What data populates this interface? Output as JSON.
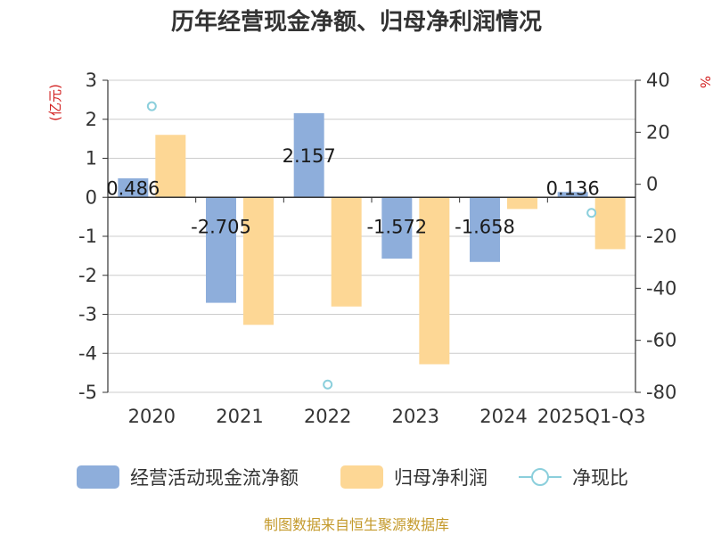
{
  "chart_data": {
    "type": "bar",
    "title": "历年经营现金净额、归母净利润情况",
    "categories": [
      "2020",
      "2021",
      "2022",
      "2023",
      "2024",
      "2025Q1-Q3"
    ],
    "left_axis_unit": "(亿元)",
    "right_axis_unit": "%",
    "ylim_left": [
      -5,
      3
    ],
    "yticks_left": [
      3,
      2,
      1,
      0,
      -1,
      -2,
      -3,
      -4,
      -5
    ],
    "ylim_right": [
      -80,
      40
    ],
    "yticks_right": [
      40,
      20,
      0,
      -20,
      -40,
      -60,
      -80
    ],
    "grid": true,
    "legend_position": "bottom",
    "series": [
      {
        "name": "经营活动现金流净额",
        "kind": "bar",
        "axis": "left",
        "color": "#8eaedb",
        "values": [
          0.486,
          -2.705,
          2.157,
          -1.572,
          -1.658,
          0.136
        ],
        "labels": [
          "0.486",
          "-2.705",
          "2.157",
          "-1.572",
          "-1.658",
          "0.136"
        ]
      },
      {
        "name": "归母净利润",
        "kind": "bar",
        "axis": "left",
        "color": "#fdd795",
        "values": [
          1.6,
          -3.27,
          -2.8,
          -4.28,
          -0.3,
          -1.33
        ]
      },
      {
        "name": "净现比",
        "kind": "scatter",
        "axis": "right",
        "color": "#8bcfdc",
        "values": [
          30,
          null,
          -77,
          null,
          null,
          -11
        ]
      }
    ],
    "source": "制图数据来自恒生聚源数据库"
  }
}
